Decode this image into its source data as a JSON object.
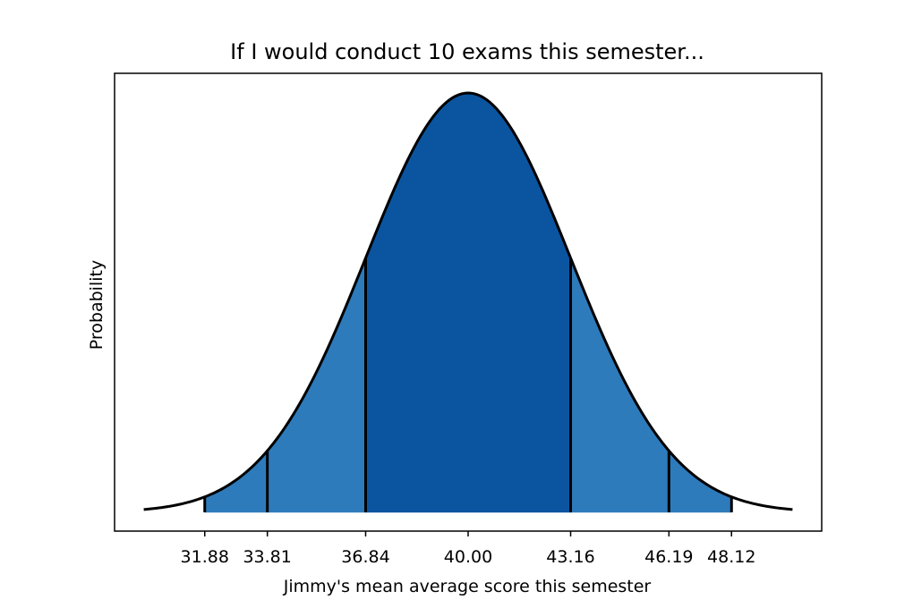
{
  "chart_data": {
    "type": "area",
    "title": "If I would conduct 10 exams this semester...",
    "xlabel": "Jimmy's mean average score this semester",
    "ylabel": "Probability",
    "distribution": {
      "kind": "normal",
      "mean": 40.0,
      "std": 3.16
    },
    "xlim": [
      29.1,
      50.9
    ],
    "curve_range": [
      30.0,
      50.0
    ],
    "x_ticks": [
      31.88,
      33.81,
      36.84,
      40.0,
      43.16,
      46.19,
      48.12
    ],
    "x_tick_labels": [
      "31.88",
      "33.81",
      "36.84",
      "40.00",
      "43.16",
      "46.19",
      "48.12"
    ],
    "y_ticks_shown": false,
    "grid": false,
    "shaded_regions": [
      {
        "from": 36.84,
        "to": 43.16,
        "color": "#0b55a0"
      },
      {
        "from": 31.88,
        "to": 36.84,
        "color": "#2e7bbb"
      },
      {
        "from": 43.16,
        "to": 48.12,
        "color": "#2e7bbb"
      }
    ],
    "boundary_lines": [
      31.88,
      33.81,
      36.84,
      43.16,
      46.19,
      48.12
    ],
    "curve_color": "#000000"
  }
}
